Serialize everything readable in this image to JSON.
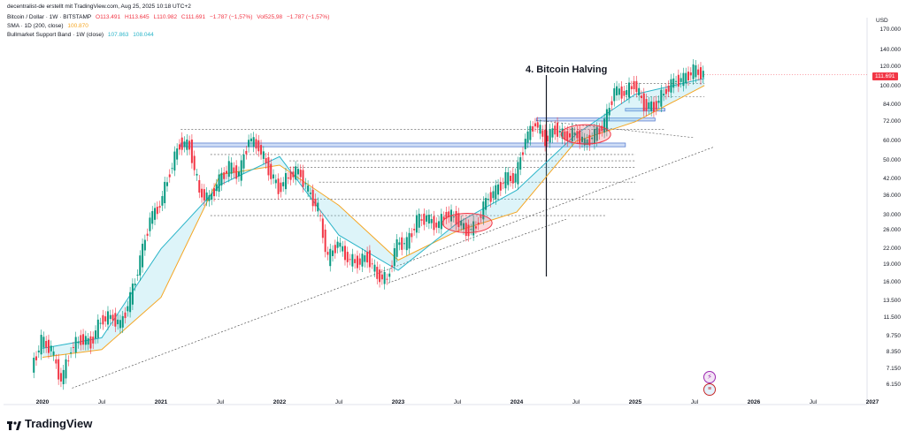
{
  "header": {
    "source_line": "decentralist-de erstellt mit TradingView.com, Aug 25, 2025 10:18 UTC+2",
    "symbol": "Bitcoin / Dollar · 1W · BITSTAMP",
    "ohlc": {
      "open": "O113.491",
      "high": "H113.645",
      "low": "L110.982",
      "close": "C111.691",
      "change": "−1.787 (−1,57%)",
      "vol": "Vol525,98",
      "vol_change": "−1.787 (−1,57%)"
    },
    "sma_label": "SMA · 1D (200, close)",
    "sma_value": "100.870",
    "bmsb_label": "Bullmarket Support Band · 1W (close)",
    "bmsb_value_1": "107.863",
    "bmsb_value_2": "108.044"
  },
  "chart_data": {
    "type": "line",
    "currency": "USD",
    "y_scale": "log",
    "ylim": [
      5500,
      190000
    ],
    "price_tag": "111.691",
    "y_ticks": [
      "170.000",
      "140.000",
      "120.000",
      "100.000",
      "84.000",
      "72.000",
      "60.000",
      "50.000",
      "42.000",
      "36.000",
      "30.000",
      "26.000",
      "22.000",
      "19.000",
      "16.000",
      "13.500",
      "11.500",
      "9.750",
      "8.350",
      "7.150",
      "6.150"
    ],
    "x_ticks": [
      "2020",
      "Jul",
      "2021",
      "Jul",
      "2022",
      "Jul",
      "2023",
      "Jul",
      "2024",
      "Jul",
      "2025",
      "Jul",
      "2026",
      "Jul",
      "2027"
    ],
    "annotation": "4. Bitcoin Halving",
    "series": [
      {
        "name": "Bitcoin / Dollar",
        "x": [
          "2019-12",
          "2020-01",
          "2020-02",
          "2020-03",
          "2020-04",
          "2020-05",
          "2020-06",
          "2020-07",
          "2020-08",
          "2020-09",
          "2020-10",
          "2020-11",
          "2020-12",
          "2021-01",
          "2021-02",
          "2021-03",
          "2021-04",
          "2021-05",
          "2021-06",
          "2021-07",
          "2021-08",
          "2021-09",
          "2021-10",
          "2021-11",
          "2021-12",
          "2022-01",
          "2022-02",
          "2022-03",
          "2022-04",
          "2022-05",
          "2022-06",
          "2022-07",
          "2022-08",
          "2022-09",
          "2022-10",
          "2022-11",
          "2022-12",
          "2023-01",
          "2023-02",
          "2023-03",
          "2023-04",
          "2023-05",
          "2023-06",
          "2023-07",
          "2023-08",
          "2023-09",
          "2023-10",
          "2023-11",
          "2023-12",
          "2024-01",
          "2024-02",
          "2024-03",
          "2024-04",
          "2024-05",
          "2024-06",
          "2024-07",
          "2024-08",
          "2024-09",
          "2024-10",
          "2024-11",
          "2024-12",
          "2025-01",
          "2025-02",
          "2025-03",
          "2025-04",
          "2025-05",
          "2025-06",
          "2025-07",
          "2025-08"
        ],
        "values": [
          7200,
          9300,
          8600,
          6400,
          8700,
          9500,
          9150,
          11300,
          11700,
          10800,
          13800,
          19700,
          29000,
          33100,
          45200,
          58800,
          57700,
          37300,
          35000,
          41500,
          47100,
          43800,
          61300,
          57000,
          46300,
          38500,
          43200,
          45500,
          37700,
          31800,
          19900,
          23300,
          20000,
          19400,
          20500,
          17200,
          16500,
          23100,
          23100,
          28500,
          29300,
          27200,
          30500,
          29200,
          26000,
          27000,
          34500,
          37700,
          42300,
          42600,
          61200,
          71300,
          60700,
          67500,
          62700,
          64600,
          59000,
          63300,
          70300,
          96400,
          93400,
          102400,
          84400,
          82500,
          94200,
          104600,
          107100,
          115800,
          111691
        ]
      },
      {
        "name": "SMA · 1D (200, close)",
        "x": [
          "2020-01",
          "2020-07",
          "2021-01",
          "2021-07",
          "2022-01",
          "2022-07",
          "2023-01",
          "2023-07",
          "2024-01",
          "2024-07",
          "2025-01",
          "2025-08"
        ],
        "values": [
          8000,
          8600,
          14000,
          44000,
          48000,
          33000,
          19800,
          26000,
          31000,
          60000,
          72000,
          100870
        ]
      },
      {
        "name": "Bullmarket Support Band · 1W (close)",
        "x": [
          "2020-01",
          "2020-07",
          "2021-01",
          "2021-07",
          "2022-01",
          "2022-07",
          "2023-01",
          "2023-07",
          "2024-01",
          "2024-07",
          "2025-01",
          "2025-08"
        ],
        "values": [
          8700,
          9600,
          22000,
          40000,
          52000,
          25000,
          18000,
          28000,
          38000,
          64000,
          93000,
          107863
        ]
      }
    ],
    "support_zones": [
      {
        "from": "2021-03",
        "to": "2024-12",
        "low": 57000,
        "high": 59000
      },
      {
        "from": "2024-03",
        "to": "2025-03",
        "low": 72500,
        "high": 74500
      },
      {
        "from": "2024-12",
        "to": "2025-04",
        "low": 79500,
        "high": 81500
      }
    ],
    "ellipses": [
      {
        "center": "2023-08",
        "value": 28000
      },
      {
        "center": "2024-08",
        "value": 64000
      }
    ],
    "grid": true,
    "legend": "top-left"
  }
}
